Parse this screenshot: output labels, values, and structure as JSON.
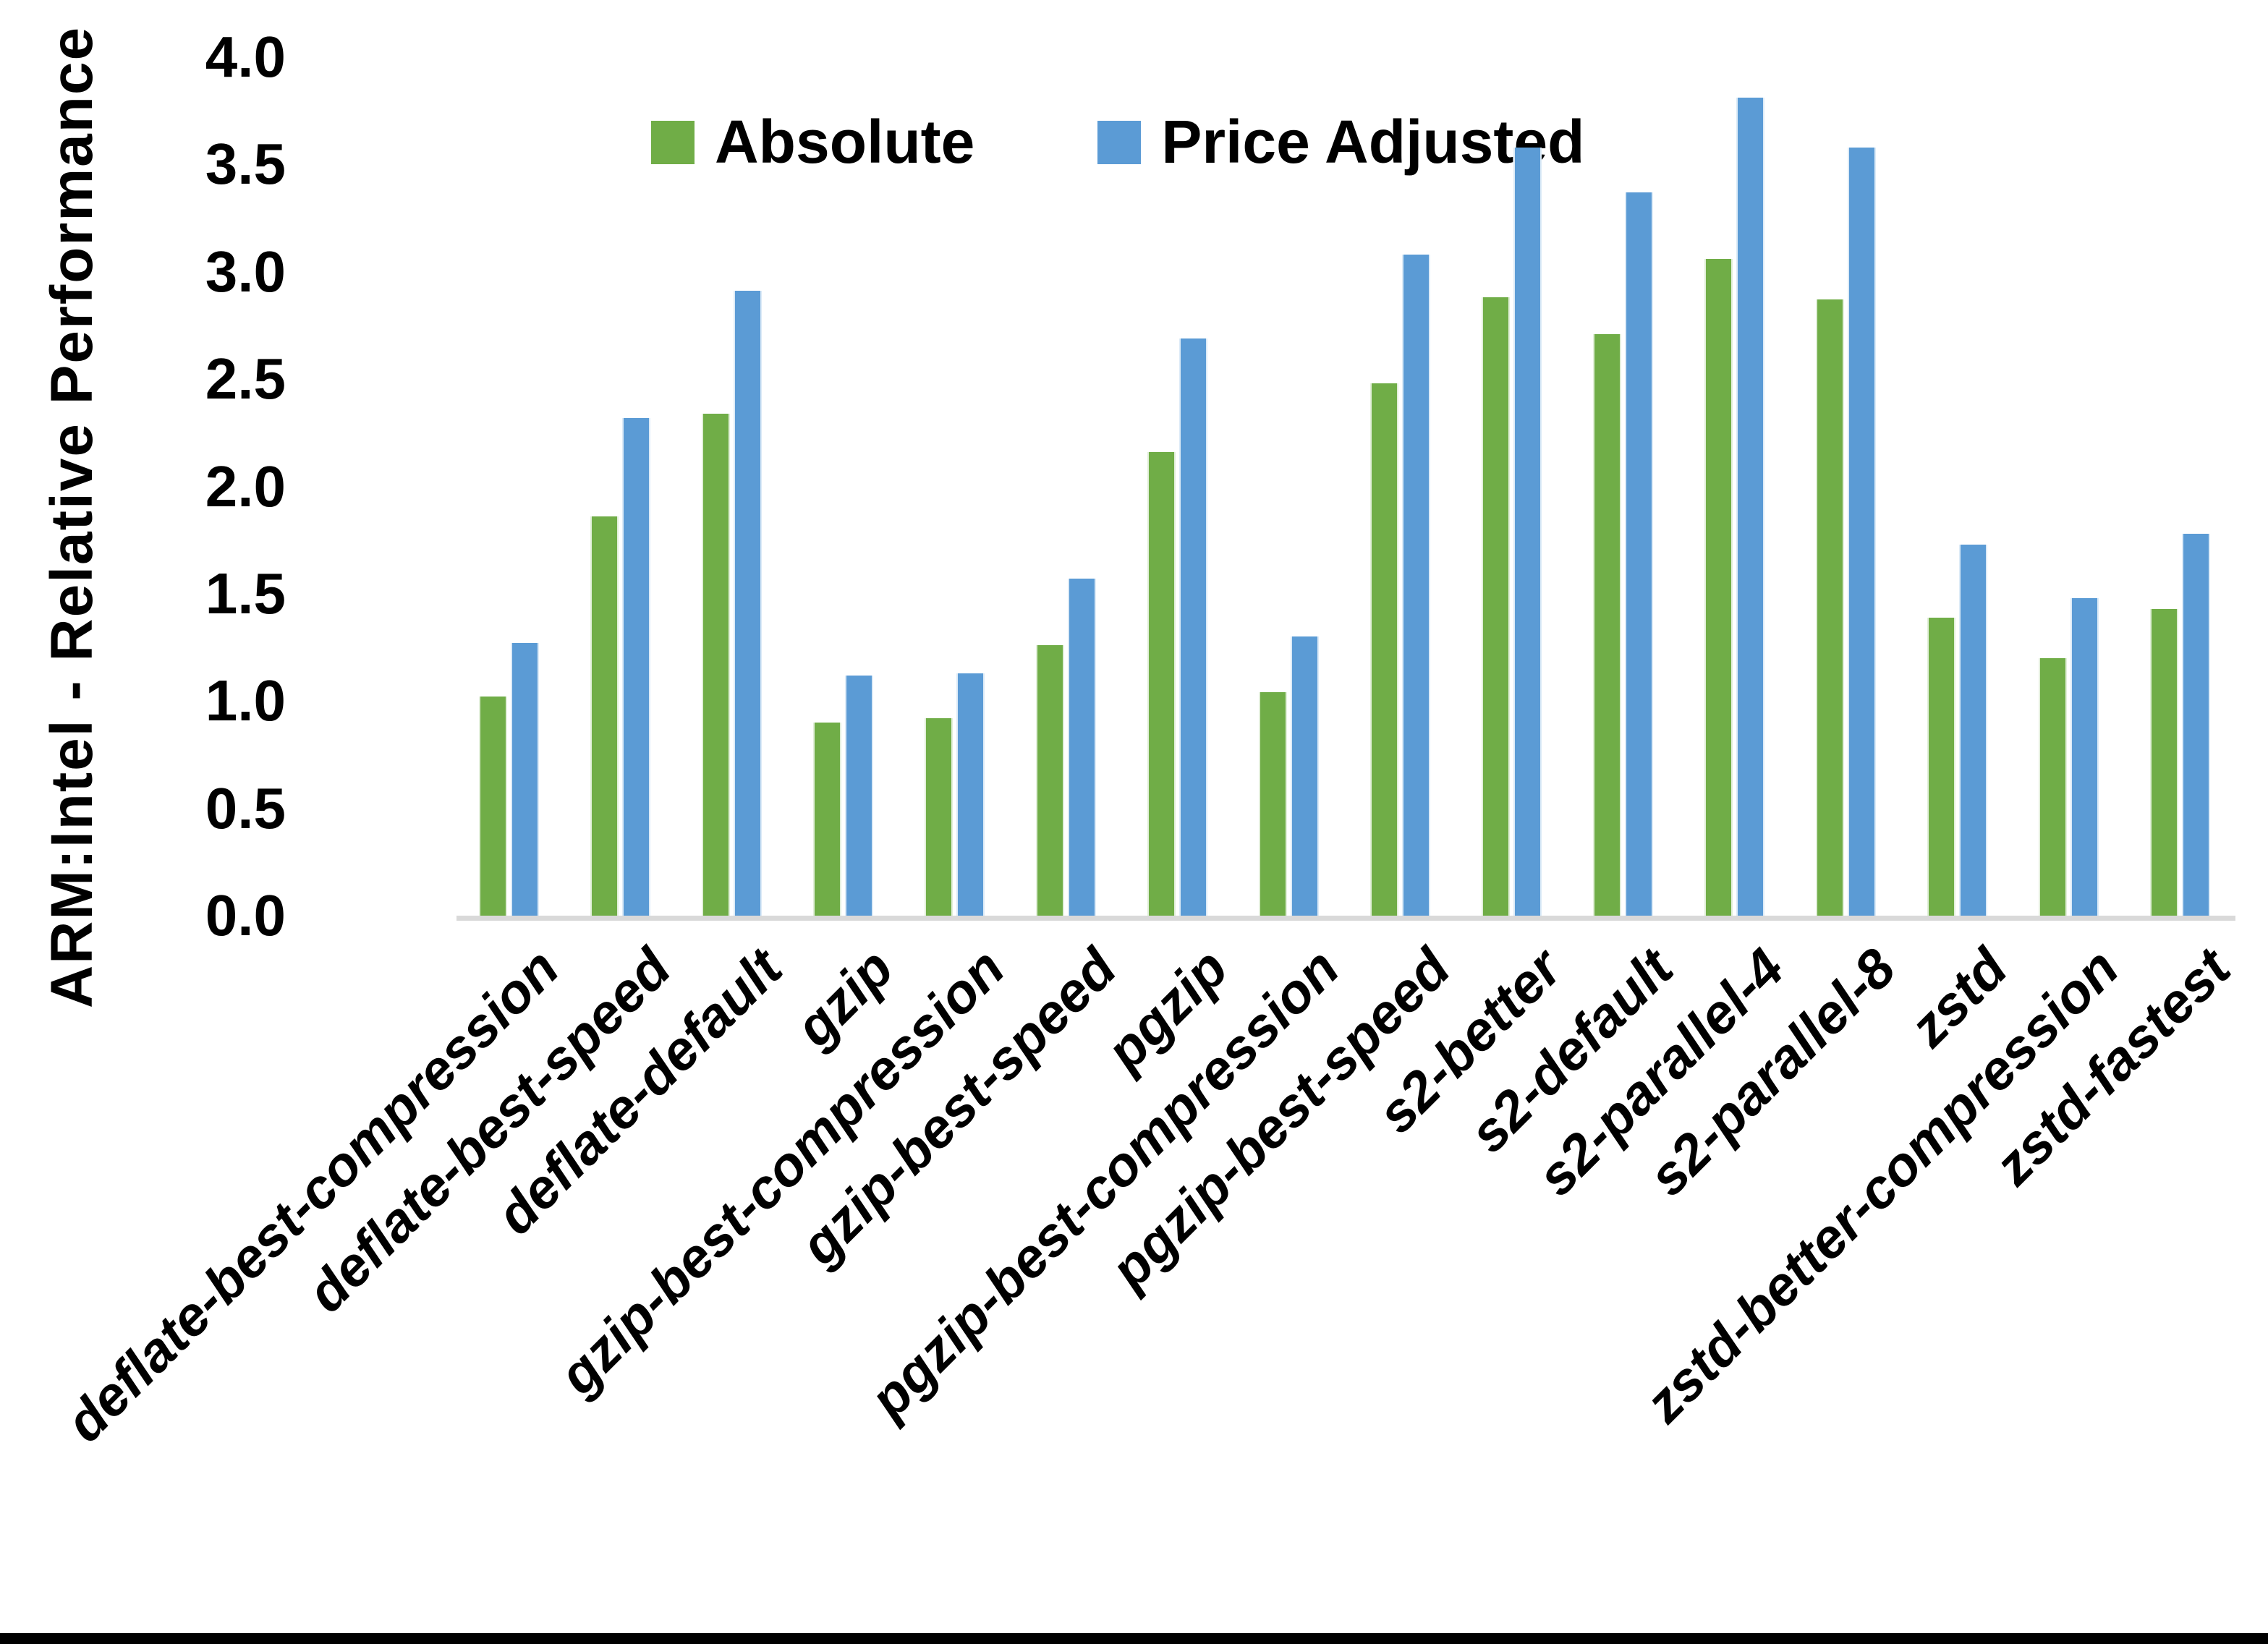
{
  "chart_data": {
    "type": "bar",
    "title": "",
    "ylabel": "ARM:Intel - Relative Performance",
    "xlabel": "",
    "ylim": [
      0.0,
      4.0
    ],
    "ytick_step": 0.5,
    "yticks": [
      "0.0",
      "0.5",
      "1.0",
      "1.5",
      "2.0",
      "2.5",
      "3.0",
      "3.5",
      "4.0"
    ],
    "grid": false,
    "legend_position": "top-center",
    "categories": [
      "deflate-best-compression",
      "deflate-best-speed",
      "deflate-default",
      "gzip",
      "gzip-best-compression",
      "gzip-best-speed",
      "pgzip",
      "pgzip-best-compression",
      "pgzip-best-speed",
      "s2-better",
      "s2-default",
      "s2-parallel-4",
      "s2-parallel-8",
      "zstd",
      "zstd-better-compression",
      "zstd-fastest"
    ],
    "series": [
      {
        "name": "Absolute",
        "color": "#70AD47",
        "edge_color": "#E2EFDA",
        "values": [
          1.02,
          1.86,
          2.34,
          0.9,
          0.92,
          1.26,
          2.16,
          1.04,
          2.48,
          2.88,
          2.71,
          3.06,
          2.87,
          1.39,
          1.2,
          1.43
        ]
      },
      {
        "name": "Price Adjusted",
        "color": "#5B9BD5",
        "edge_color": "#DDEBF7",
        "values": [
          1.27,
          2.32,
          2.91,
          1.12,
          1.13,
          1.57,
          2.69,
          1.3,
          3.08,
          3.58,
          3.37,
          3.81,
          3.58,
          1.73,
          1.48,
          1.78
        ]
      }
    ]
  },
  "colors": {
    "background": "#FFFFFF",
    "text": "#000000",
    "axis_line": "#D9D9D9",
    "bottom_border": "#000000"
  }
}
